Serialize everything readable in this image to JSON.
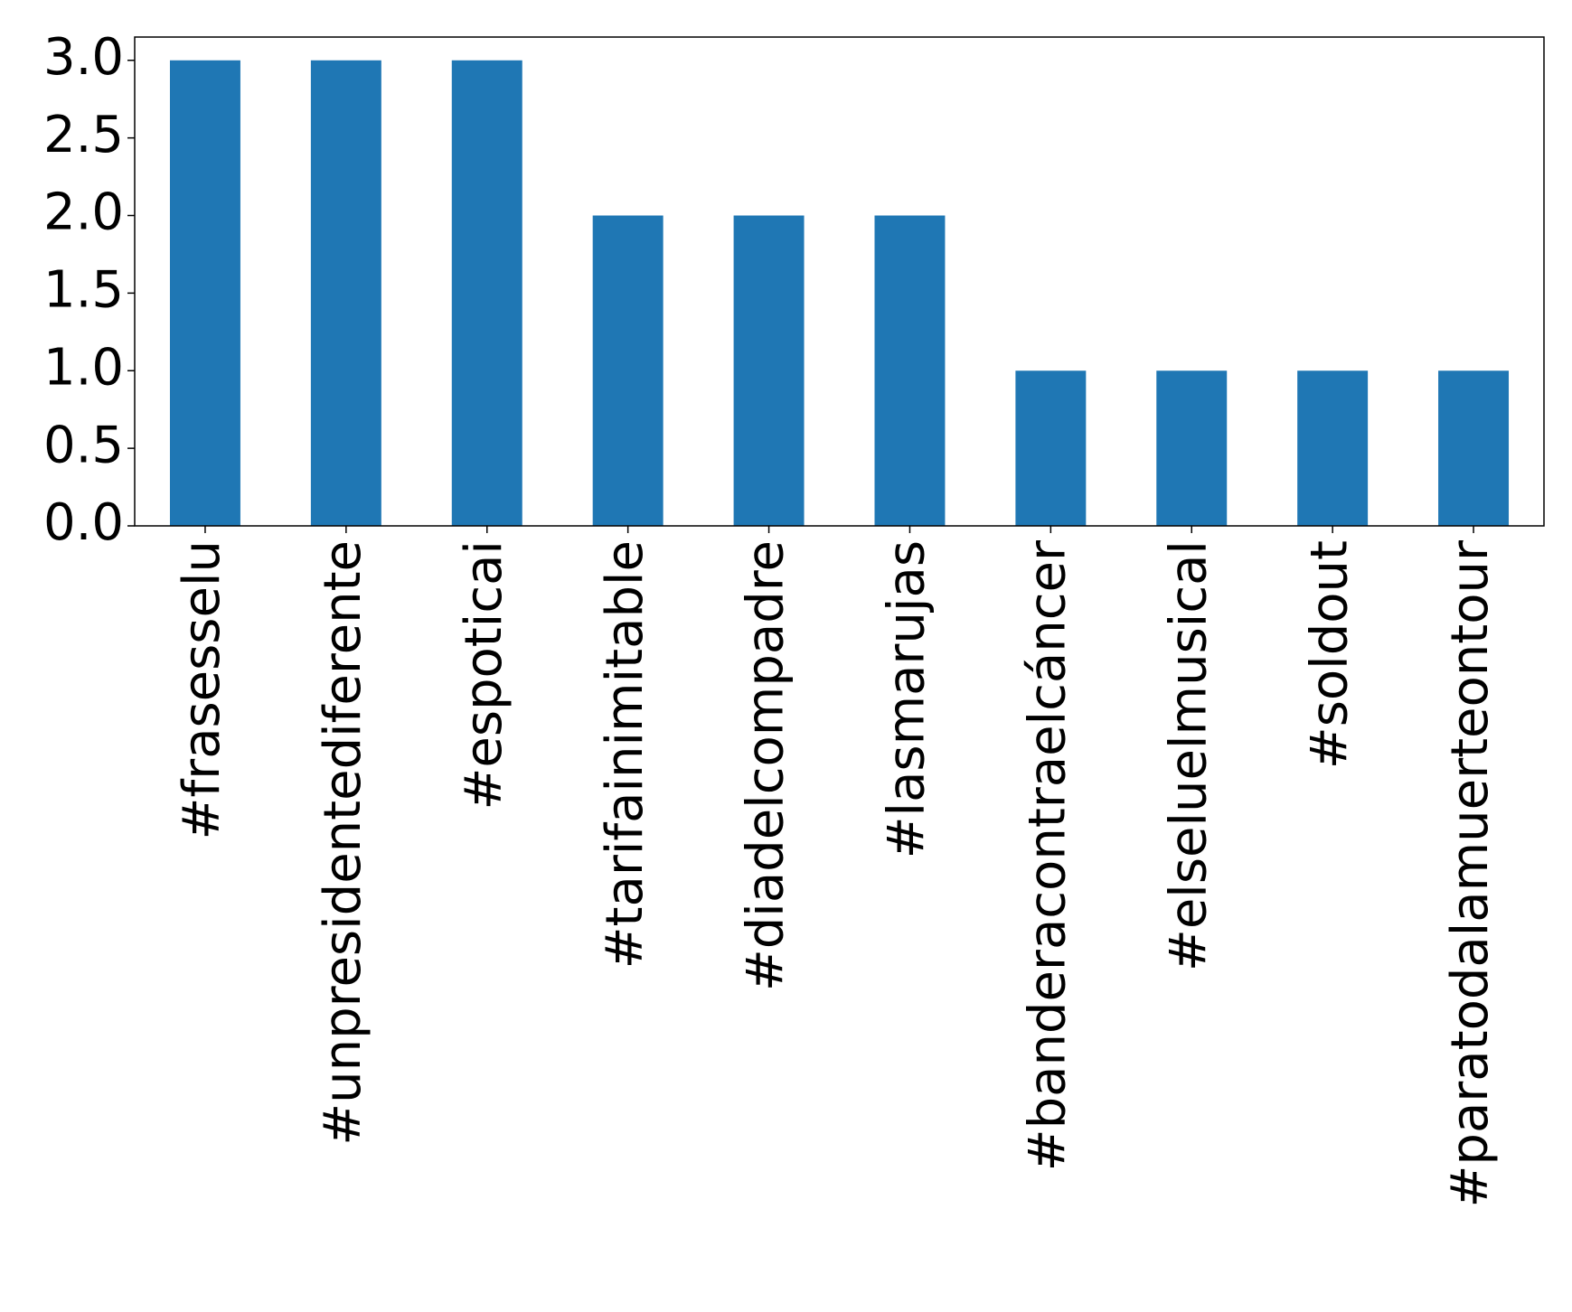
{
  "chart_data": {
    "type": "bar",
    "categories": [
      "#frasesselu",
      "#unpresidentediferente",
      "#espoticai",
      "#tarifainimitable",
      "#diadelcompadre",
      "#lasmarujas",
      "#banderacontraelcáncer",
      "#elseluelmusical",
      "#soldout",
      "#paratodalamuerteontour"
    ],
    "values": [
      3,
      3,
      3,
      2,
      2,
      2,
      1,
      1,
      1,
      1
    ],
    "color": "#1f77b4",
    "ylim": [
      0,
      3.15
    ],
    "yticks": [
      {
        "value": 0,
        "label": "0.0"
      },
      {
        "value": 0.5,
        "label": "0.5"
      },
      {
        "value": 1,
        "label": "1.0"
      },
      {
        "value": 1.5,
        "label": "1.5"
      },
      {
        "value": 2,
        "label": "2.0"
      },
      {
        "value": 2.5,
        "label": "2.5"
      },
      {
        "value": 3,
        "label": "3.0"
      }
    ],
    "grid": false
  }
}
